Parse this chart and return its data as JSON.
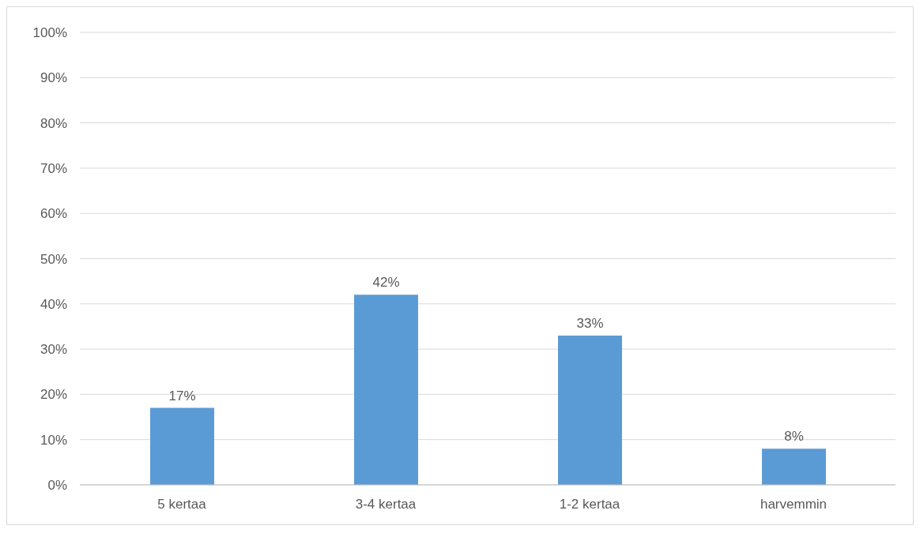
{
  "chart_data": {
    "type": "bar",
    "categories": [
      "5 kertaa",
      "3-4 kertaa",
      "1-2 kertaa",
      "harvemmin"
    ],
    "values": [
      17,
      42,
      33,
      8
    ],
    "color": "#5b9bd5",
    "value_labels": [
      "17%",
      "42%",
      "33%",
      "8%"
    ],
    "ylim": [
      0,
      100
    ],
    "yticks": [
      {
        "value": 0,
        "label": "0%"
      },
      {
        "value": 10,
        "label": "10%"
      },
      {
        "value": 20,
        "label": "20%"
      },
      {
        "value": 30,
        "label": "30%"
      },
      {
        "value": 40,
        "label": "40%"
      },
      {
        "value": 50,
        "label": "50%"
      },
      {
        "value": 60,
        "label": "60%"
      },
      {
        "value": 70,
        "label": "70%"
      },
      {
        "value": 80,
        "label": "80%"
      },
      {
        "value": 90,
        "label": "90%"
      },
      {
        "value": 100,
        "label": "100%"
      }
    ],
    "grid": "y",
    "legend": false
  }
}
